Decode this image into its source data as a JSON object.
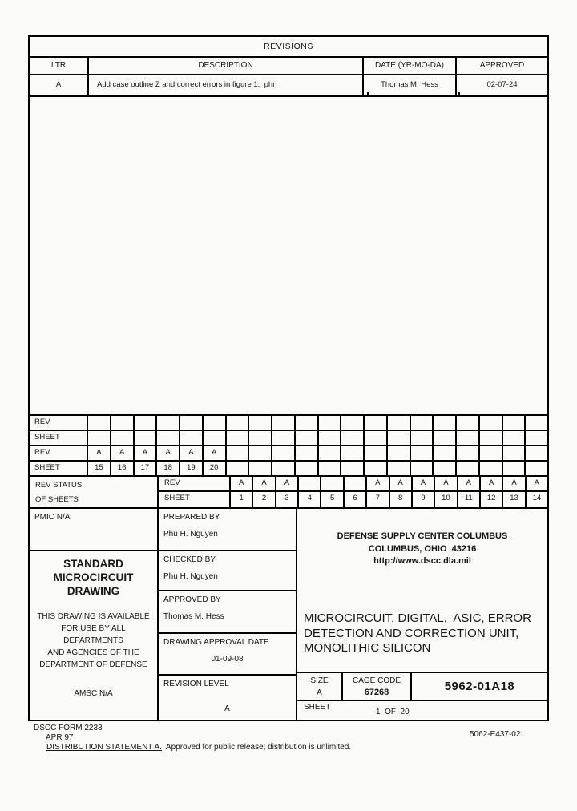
{
  "revisions": {
    "title": "REVISIONS",
    "headers": {
      "ltr": "LTR",
      "description": "DESCRIPTION",
      "date": "DATE (YR-MO-DA)",
      "approved": "APPROVED"
    },
    "entry": {
      "ltr": "A",
      "description": "Add case outline Z and correct errors in figure 1.  phn",
      "date": "Thomas M. Hess",
      "approved": "02-07-24"
    }
  },
  "upper_grid": {
    "rows": [
      {
        "label": "REV",
        "cells": [
          "",
          "",
          "",
          "",
          "",
          "",
          "",
          "",
          "",
          "",
          "",
          "",
          "",
          "",
          "",
          "",
          "",
          "",
          "",
          ""
        ]
      },
      {
        "label": "SHEET",
        "cells": [
          "",
          "",
          "",
          "",
          "",
          "",
          "",
          "",
          "",
          "",
          "",
          "",
          "",
          "",
          "",
          "",
          "",
          "",
          "",
          ""
        ]
      },
      {
        "label": "REV",
        "cells": [
          "A",
          "A",
          "A",
          "A",
          "A",
          "A",
          "",
          "",
          "",
          "",
          "",
          "",
          "",
          "",
          "",
          "",
          "",
          "",
          "",
          ""
        ]
      },
      {
        "label": "SHEET",
        "cells": [
          "15",
          "16",
          "17",
          "18",
          "19",
          "20",
          "",
          "",
          "",
          "",
          "",
          "",
          "",
          "",
          "",
          "",
          "",
          "",
          "",
          ""
        ]
      }
    ]
  },
  "rev_status": {
    "label_line1": "REV STATUS",
    "label_line2": "OF SHEETS",
    "rows": [
      {
        "label": "REV",
        "cells": [
          "A",
          "A",
          "A",
          "",
          "",
          "",
          "A",
          "A",
          "A",
          "A",
          "A",
          "A",
          "A",
          "A"
        ]
      },
      {
        "label": "SHEET",
        "cells": [
          "1",
          "2",
          "3",
          "4",
          "5",
          "6",
          "7",
          "8",
          "9",
          "10",
          "11",
          "12",
          "13",
          "14"
        ]
      }
    ]
  },
  "info": {
    "pmic": "PMIC N/A",
    "smd_heading": [
      "STANDARD",
      "MICROCIRCUIT",
      "DRAWING"
    ],
    "availability": [
      "THIS DRAWING IS AVAILABLE",
      "FOR USE BY ALL",
      "DEPARTMENTS",
      "AND AGENCIES OF THE",
      "DEPARTMENT OF DEFENSE"
    ],
    "amsc": "AMSC N/A",
    "prepared_label": "PREPARED BY",
    "prepared_value": "Phu H. Nguyen",
    "checked_label": "CHECKED BY",
    "checked_value": "Phu H. Nguyen",
    "approved_label": "APPROVED BY",
    "approved_value": "Thomas M. Hess",
    "date_label": "DRAWING APPROVAL DATE",
    "date_value": "01-09-08",
    "revlevel_label": "REVISION LEVEL",
    "revlevel_value": "A",
    "center_name": [
      "DEFENSE SUPPLY CENTER COLUMBUS",
      "COLUMBUS, OHIO  43216",
      "http://www.dscc.dla.mil"
    ],
    "title_lines": [
      "MICROCIRCUIT, DIGITAL,  ASIC, ERROR",
      "DETECTION AND CORRECTION UNIT,",
      "MONOLITHIC SILICON"
    ],
    "size_label": "SIZE",
    "size_value": "A",
    "cage_label": "CAGE CODE",
    "cage_value": "67268",
    "smd_number": "5962-01A18",
    "sheet_label": "SHEET",
    "sheet_value": "1  OF  20"
  },
  "footer": {
    "form": "DSCC FORM 2233",
    "form_date": "APR 97",
    "dist_label": "DISTRIBUTION STATEMENT A.",
    "dist_text": "  Approved for public release; distribution is unlimited.",
    "doc_number": "5062-E437-02"
  },
  "colors": {
    "ink": "#161616",
    "paper": "#fafaf8",
    "line": "#000000"
  }
}
